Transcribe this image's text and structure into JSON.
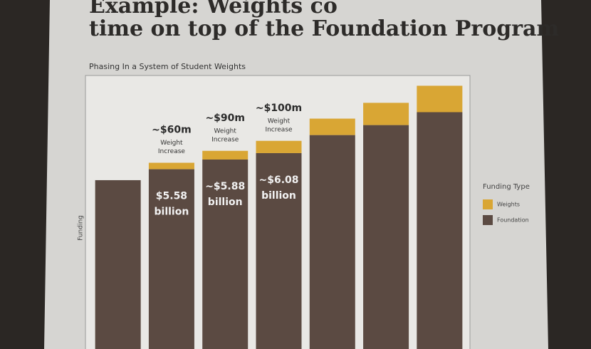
{
  "slide_title_lines": [
    "Example: Weights co",
    "time on top of the Foundation Program"
  ],
  "chart_data": {
    "type": "stacked_bar",
    "title": "Phasing In a System of Student Weights",
    "ylabel": "Funding",
    "categories": [
      null,
      null,
      null,
      null,
      null,
      null,
      null
    ],
    "series": [
      {
        "name": "Foundation",
        "color": "#5b4a42",
        "values": [
          5.24,
          5.58,
          5.88,
          6.08,
          6.64,
          6.95,
          7.35
        ]
      },
      {
        "name": "Weights",
        "color": "#d9a634",
        "values": [
          0,
          0.2,
          0.27,
          0.38,
          0.51,
          0.69,
          0.82
        ]
      }
    ],
    "ylim": [
      0,
      8.4
    ],
    "legend_title": "Funding Type",
    "legend": "right",
    "annotations": [
      {
        "bar": 1,
        "amount": "~$60m",
        "note": [
          "Weight",
          "Increase"
        ],
        "total": [
          "$5.58",
          "billion"
        ]
      },
      {
        "bar": 2,
        "amount": "~$90m",
        "note": [
          "Weight",
          "Increase"
        ],
        "total": [
          "~$5.88",
          "billion"
        ]
      },
      {
        "bar": 3,
        "amount": "~$100m",
        "note": [
          "Weight",
          "Increase"
        ],
        "total": [
          "~$6.08",
          "billion"
        ]
      }
    ]
  }
}
